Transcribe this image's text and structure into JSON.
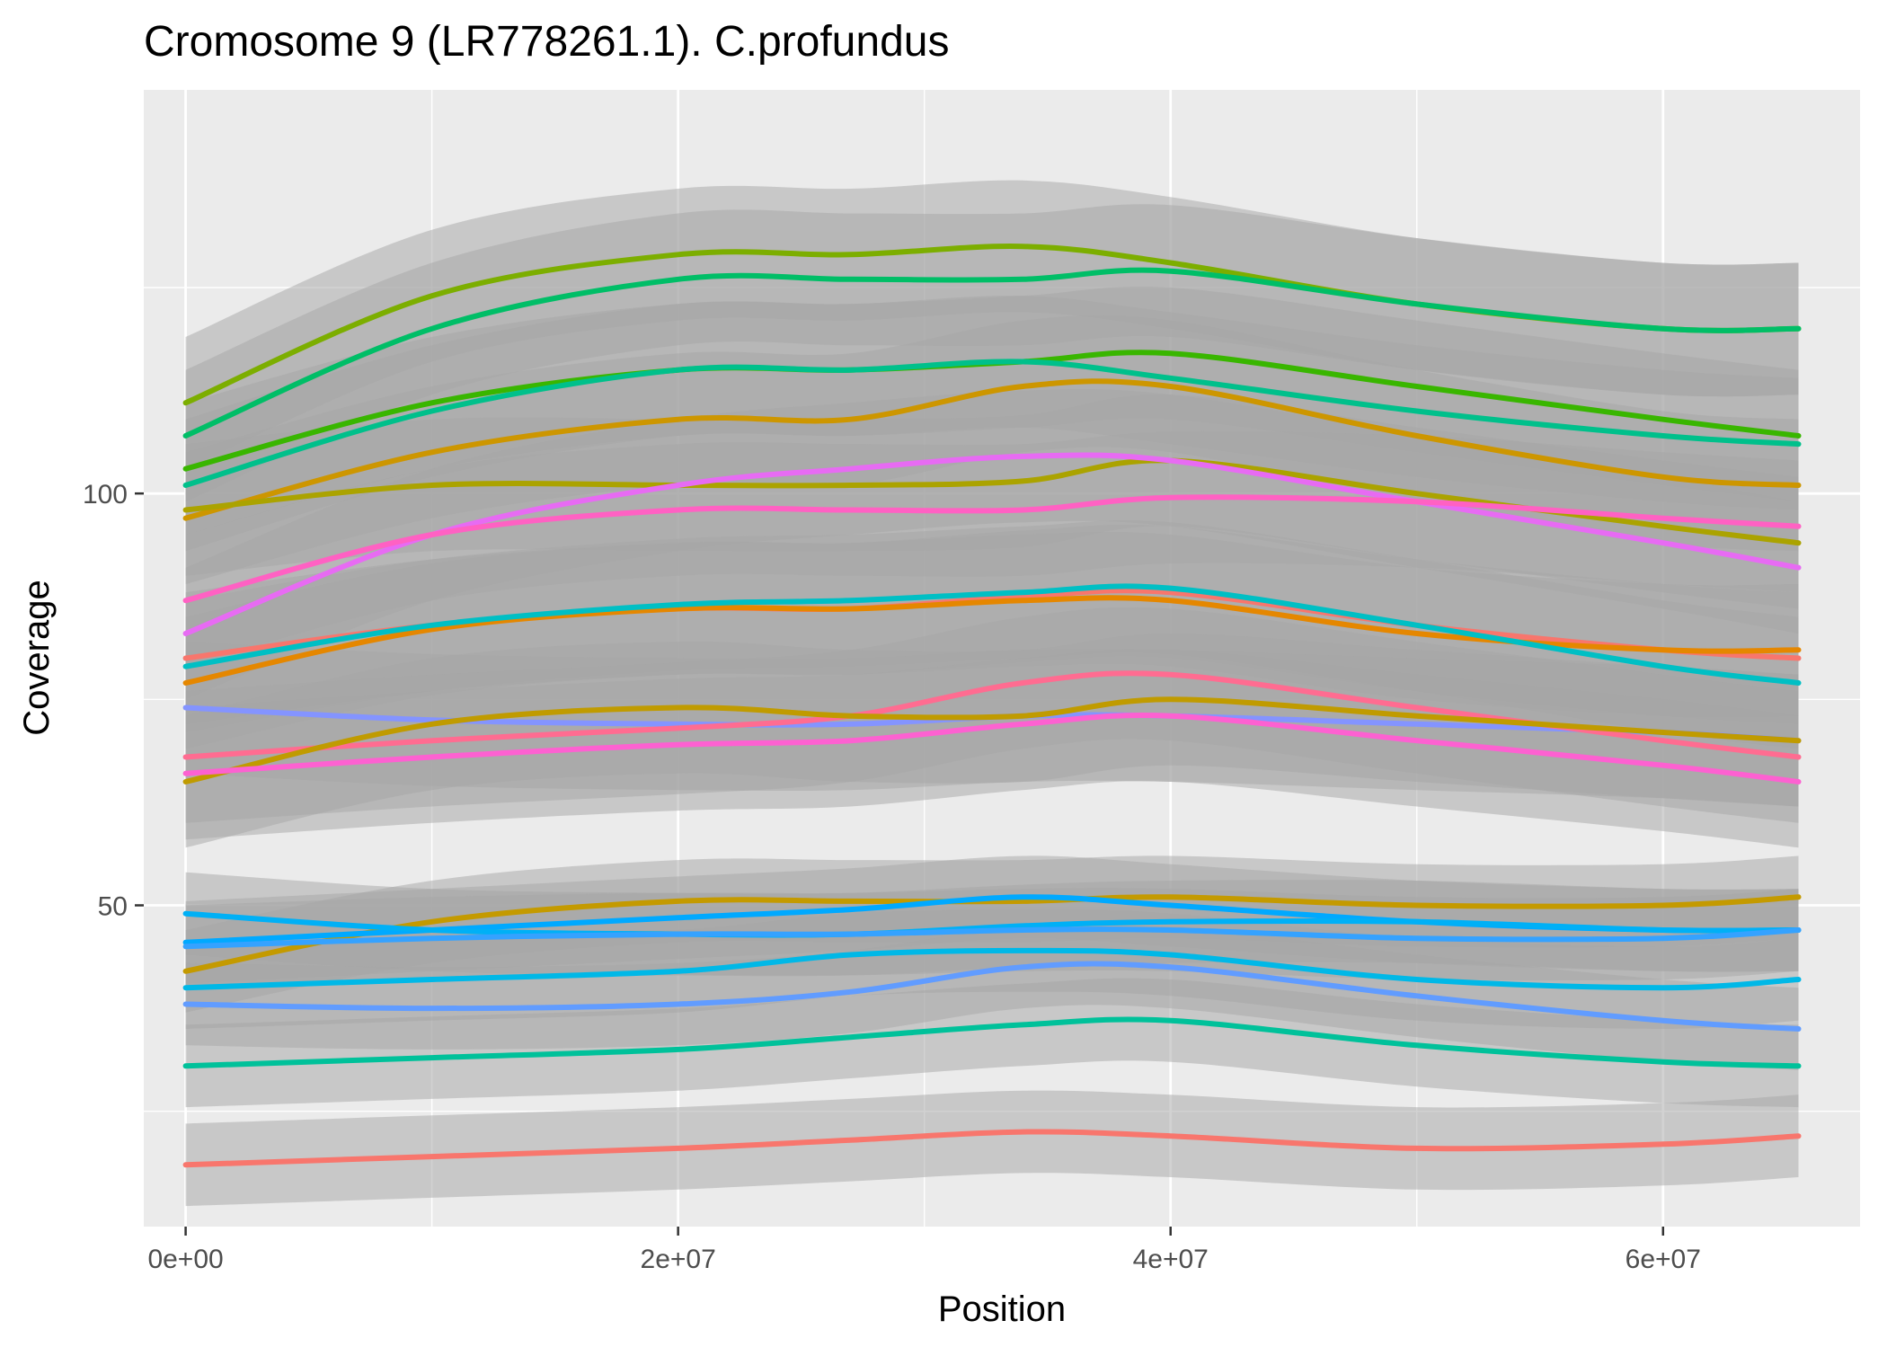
{
  "chart_data": {
    "type": "line",
    "title": "Cromosome 9 (LR778261.1). C.profundus",
    "xlabel": "Position",
    "ylabel": "Coverage",
    "xlim": [
      -1700000,
      68000000
    ],
    "ylim": [
      11,
      149
    ],
    "x_ticks": [
      {
        "value": 0,
        "label": "0e+00"
      },
      {
        "value": 20000000,
        "label": "2e+07"
      },
      {
        "value": 40000000,
        "label": "4e+07"
      },
      {
        "value": 60000000,
        "label": "6e+07"
      }
    ],
    "x_minor": [
      10000000,
      30000000,
      50000000
    ],
    "y_ticks": [
      {
        "value": 50,
        "label": "50"
      },
      {
        "value": 100,
        "label": "100"
      }
    ],
    "y_minor": [
      25,
      75,
      125
    ],
    "grid": true,
    "legend": "none",
    "style": {
      "panel_bg": "#ebebeb",
      "grid_color": "#ffffff",
      "ribbon_color": "#a6a6a6",
      "ribbon_opacity": 0.5
    },
    "x": [
      0,
      10000000,
      20000000,
      27000000,
      34000000,
      40000000,
      50000000,
      60000000,
      65500000
    ],
    "series": [
      {
        "color": "#7CAE00",
        "values": [
          111,
          124,
          129,
          129,
          130,
          128,
          123,
          120,
          120
        ],
        "band": 8
      },
      {
        "color": "#00BE67",
        "values": [
          107,
          120,
          126,
          126,
          126,
          127,
          123,
          120,
          120
        ],
        "band": 8
      },
      {
        "color": "#39B600",
        "values": [
          103,
          111,
          115,
          115,
          116,
          117,
          113,
          109,
          107
        ],
        "band": 8
      },
      {
        "color": "#00C08B",
        "values": [
          101,
          110,
          115,
          115,
          116,
          114,
          110,
          107,
          106
        ],
        "band": 8
      },
      {
        "color": "#CD9600",
        "values": [
          97,
          105,
          109,
          109,
          113,
          113,
          107,
          102,
          101
        ],
        "band": 8
      },
      {
        "color": "#ABA300",
        "values": [
          98,
          101,
          101,
          101,
          101.5,
          104,
          100,
          96,
          94
        ],
        "band": 8
      },
      {
        "color": "#E76BF3",
        "values": [
          83,
          95,
          101,
          103,
          104.5,
          104,
          99,
          94,
          91
        ],
        "band": 8
      },
      {
        "color": "#FF61C3",
        "values": [
          87,
          95,
          98,
          98,
          98,
          99.5,
          99,
          97,
          96
        ],
        "band": 8
      },
      {
        "color": "#F8766D",
        "values": [
          80,
          84,
          86,
          86,
          87.5,
          88,
          84,
          81,
          80
        ],
        "band": 8
      },
      {
        "color": "#E58700",
        "values": [
          77,
          83.5,
          86,
          86,
          87,
          87,
          83,
          81,
          81
        ],
        "band": 8
      },
      {
        "color": "#00BFC4",
        "values": [
          79,
          84,
          86.5,
          87,
          88,
          88.5,
          84,
          79,
          77
        ],
        "band": 8
      },
      {
        "color": "#8494FF",
        "values": [
          74,
          72.5,
          72,
          72,
          73,
          73,
          72,
          71,
          70
        ],
        "band": 8
      },
      {
        "color": "#FF6C91",
        "values": [
          68,
          70,
          71.5,
          73,
          77,
          78,
          74,
          70,
          68
        ],
        "band": 8
      },
      {
        "color": "#C09B00",
        "values": [
          65,
          72,
          74,
          73,
          73,
          75,
          73,
          71,
          70
        ],
        "band": 8
      },
      {
        "color": "#FD61D1",
        "values": [
          66,
          68,
          69.5,
          70,
          72,
          73,
          70,
          67,
          65
        ],
        "band": 8
      },
      {
        "color": "#C49A00",
        "values": [
          42,
          48,
          50.5,
          50.5,
          50.5,
          51,
          50,
          50,
          51
        ],
        "band": 5
      },
      {
        "color": "#00A9FF",
        "values": [
          45.5,
          47,
          48.5,
          49.5,
          51,
          50,
          48,
          47,
          47
        ],
        "band": 5
      },
      {
        "color": "#00B0F6",
        "values": [
          49,
          47,
          46.5,
          46.5,
          47.5,
          48,
          48,
          47,
          47
        ],
        "band": 5
      },
      {
        "color": "#35A2FF",
        "values": [
          45,
          46,
          46.5,
          46.5,
          47,
          47,
          46,
          46,
          47
        ],
        "band": 5
      },
      {
        "color": "#00B8E7",
        "values": [
          40,
          41,
          42,
          44,
          44.5,
          44,
          41,
          40,
          41
        ],
        "band": 5
      },
      {
        "color": "#619CFF",
        "values": [
          38,
          37.5,
          38,
          39.5,
          42.5,
          42.5,
          39,
          36,
          35
        ],
        "band": 5
      },
      {
        "color": "#00C19A",
        "values": [
          30.5,
          31.5,
          32.5,
          34,
          35.5,
          36,
          33,
          31,
          30.5
        ],
        "band": 5
      },
      {
        "color": "#F8766D",
        "values": [
          18.5,
          19.5,
          20.5,
          21.5,
          22.5,
          22,
          20.5,
          21,
          22
        ],
        "band": 5
      }
    ]
  }
}
